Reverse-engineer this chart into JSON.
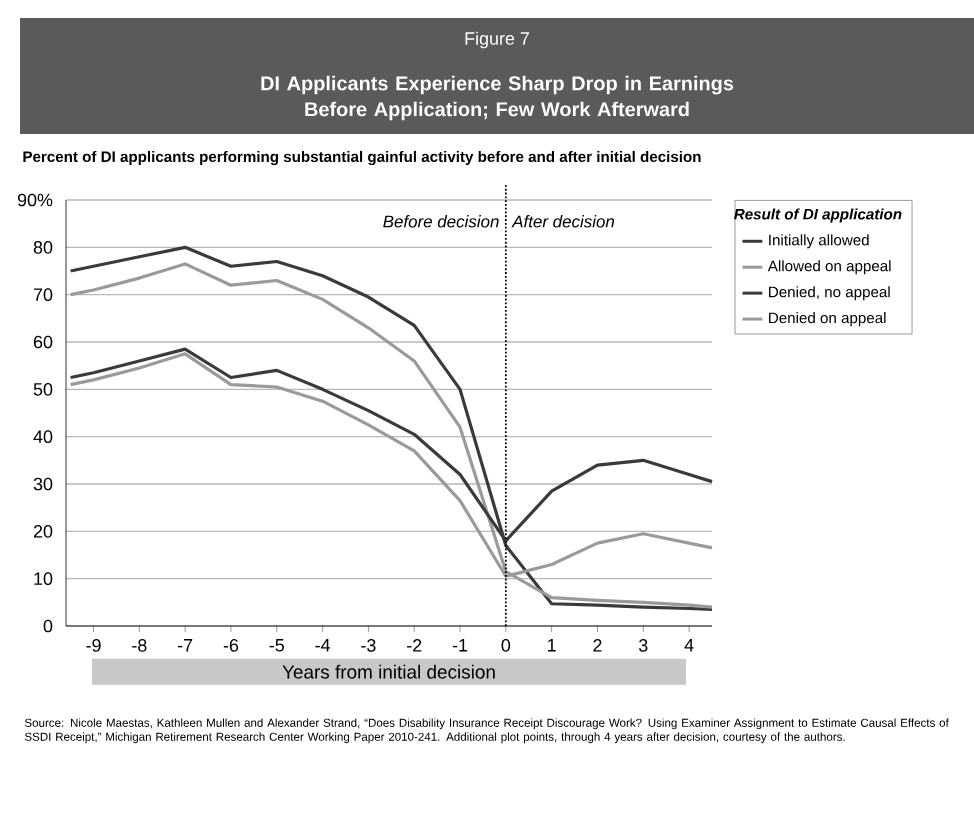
{
  "chart_data": {
    "type": "line",
    "title": "Figure 7",
    "subtitle": "DI Applicants Experience Sharp Drop in Earnings Before Application; Few Work Afterward",
    "ylabel": "Percent of DI applicants performing substantial gainful activity before and after initial decision",
    "xlabel": "Years from initial decision",
    "legend_title": "Result of DI application",
    "x": [
      -9.5,
      -9,
      -8,
      -7,
      -6,
      -5,
      -4,
      -3,
      -2,
      -1,
      0,
      1,
      2,
      3,
      4,
      4.5
    ],
    "series": [
      {
        "name": "Initially allowed",
        "color": "#3a3a3a",
        "values": [
          75,
          76,
          78,
          80,
          76,
          77,
          74,
          69.5,
          63.5,
          50,
          17,
          4.7,
          4.4,
          4,
          3.7,
          3.5
        ]
      },
      {
        "name": "Allowed on appeal",
        "color": "#9a9a9a",
        "values": [
          70,
          71,
          73.5,
          76.5,
          72,
          73,
          69,
          63,
          56,
          42,
          11.5,
          6,
          5.4,
          5,
          4.4,
          4
        ]
      },
      {
        "name": "Denied, no appeal",
        "color": "#3a3a3a",
        "values": [
          52.5,
          53.5,
          56,
          58.5,
          52.5,
          54,
          50,
          45.5,
          40.5,
          32,
          18,
          28.5,
          34,
          35,
          32,
          30.5
        ]
      },
      {
        "name": "Denied on appeal",
        "color": "#9a9a9a",
        "values": [
          51,
          52,
          54.5,
          57.5,
          51,
          50.5,
          47.5,
          42.5,
          37,
          26.5,
          10.5,
          13,
          17.5,
          19.5,
          17.5,
          16.5
        ]
      }
    ],
    "xlim": [
      -9.6,
      4.5
    ],
    "ylim": [
      0,
      90
    ],
    "xticks": [
      -9,
      -8,
      -7,
      -6,
      -5,
      -4,
      -3,
      -2,
      -1,
      0,
      1,
      2,
      3,
      4
    ],
    "yticks": [
      0,
      10,
      20,
      30,
      40,
      50,
      60,
      70,
      80,
      {
        "value": 90,
        "label": "90%"
      }
    ],
    "grid": "y",
    "legend": "right",
    "marker": "none",
    "ref_lines": [
      {
        "axis": "x",
        "value": 0,
        "line_style": "dotted"
      }
    ],
    "annotations": [
      "Before decision",
      "After decision",
      "Source: Nicole Maestas, Kathleen Mullen and Alexander Strand, “Does Disability Insurance Receipt Discourage Work? Using Examiner Assignment to Estimate Causal Effects of SSDI Receipt,” Michigan Retirement Research Center Working Paper 2010-241. Additional plot points, through 4 years after decision, courtesy of the authors."
    ]
  }
}
